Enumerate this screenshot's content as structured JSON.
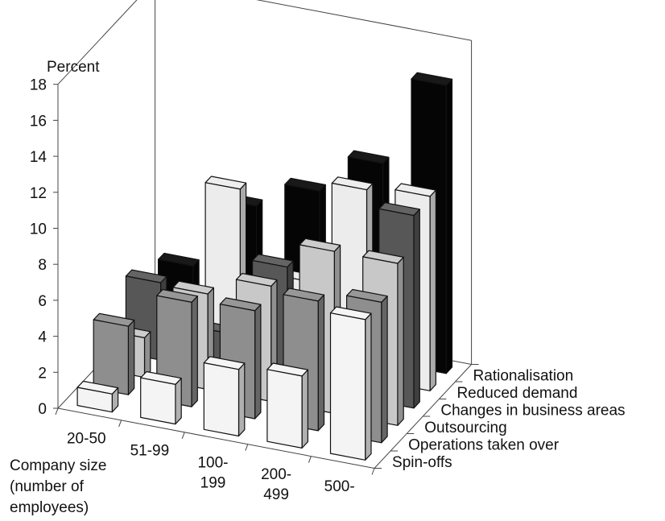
{
  "chart_data": {
    "type": "bar",
    "variant": "3d-grouped-depth",
    "y_axis_title": "Percent",
    "x_axis_title_lines": [
      "Company size",
      "(number of",
      "employees)"
    ],
    "yticks": [
      "0",
      "2",
      "4",
      "6",
      "8",
      "10",
      "12",
      "14",
      "16",
      "18"
    ],
    "ylim": [
      0,
      18
    ],
    "grid": false,
    "categories": [
      {
        "lines": [
          "20-50"
        ]
      },
      {
        "lines": [
          "51-99"
        ]
      },
      {
        "lines": [
          "100-",
          "199"
        ]
      },
      {
        "lines": [
          "200-",
          "499"
        ]
      },
      {
        "lines": [
          "500-"
        ]
      }
    ],
    "series": [
      {
        "name": "Spin-offs",
        "color": "#f4f4f4",
        "values": [
          1.0,
          2.2,
          3.7,
          4.0,
          7.8
        ]
      },
      {
        "name": "Operations taken over",
        "color": "#8e8e8e",
        "values": [
          3.8,
          5.8,
          6.0,
          7.2,
          7.8
        ]
      },
      {
        "name": "Outsourcing",
        "color": "#c8c8c8",
        "values": [
          2.2,
          5.3,
          6.4,
          9.0,
          9.0
        ]
      },
      {
        "name": "Changes in business areas",
        "color": "#575757",
        "values": [
          4.3,
          2.2,
          6.5,
          3.2,
          10.7
        ]
      },
      {
        "name": "Reduced demand",
        "color": "#ececec",
        "values": [
          2.0,
          9.2,
          4.8,
          10.5,
          10.8
        ]
      },
      {
        "name": "Rationalisation",
        "color": "#050505",
        "values": [
          3.3,
          7.3,
          8.8,
          11.0,
          16.0
        ]
      }
    ]
  }
}
